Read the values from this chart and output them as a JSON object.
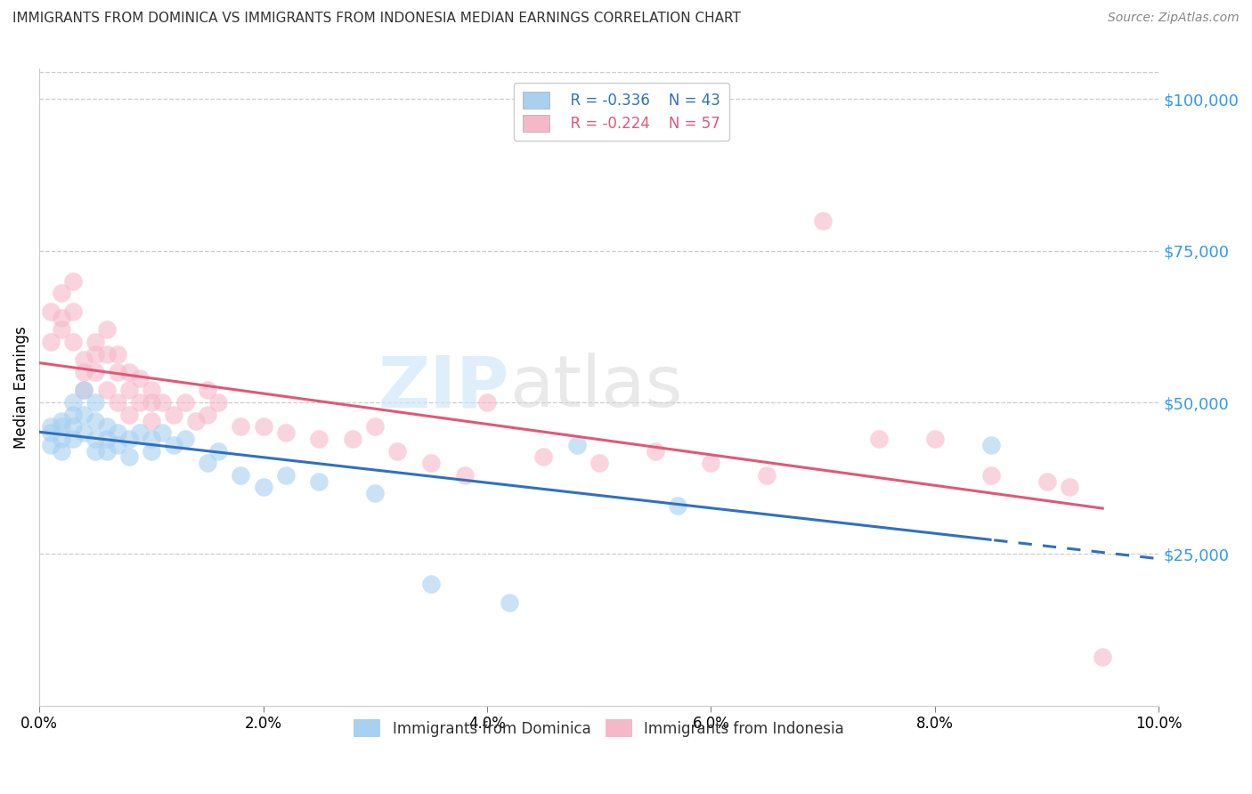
{
  "title": "IMMIGRANTS FROM DOMINICA VS IMMIGRANTS FROM INDONESIA MEDIAN EARNINGS CORRELATION CHART",
  "source": "Source: ZipAtlas.com",
  "ylabel": "Median Earnings",
  "right_yticks": [
    25000,
    50000,
    75000,
    100000
  ],
  "right_yticklabels": [
    "$25,000",
    "$50,000",
    "$75,000",
    "$100,000"
  ],
  "legend_blue_r": "R = -0.336",
  "legend_blue_n": "N = 43",
  "legend_pink_r": "R = -0.224",
  "legend_pink_n": "N = 57",
  "legend_blue_label": "Immigrants from Dominica",
  "legend_pink_label": "Immigrants from Indonesia",
  "blue_color": "#a8d0f0",
  "pink_color": "#f5b8c8",
  "blue_line_color": "#3070c0",
  "pink_line_color": "#e05878",
  "xmin": 0.0,
  "xmax": 0.1,
  "ymin": 0,
  "ymax": 105000,
  "blue_scatter_x": [
    0.001,
    0.001,
    0.001,
    0.002,
    0.002,
    0.002,
    0.002,
    0.003,
    0.003,
    0.003,
    0.003,
    0.004,
    0.004,
    0.004,
    0.005,
    0.005,
    0.005,
    0.005,
    0.006,
    0.006,
    0.006,
    0.007,
    0.007,
    0.008,
    0.008,
    0.009,
    0.01,
    0.01,
    0.011,
    0.012,
    0.013,
    0.015,
    0.016,
    0.018,
    0.02,
    0.022,
    0.025,
    0.03,
    0.035,
    0.042,
    0.048,
    0.057,
    0.085
  ],
  "blue_scatter_y": [
    46000,
    45000,
    43000,
    47000,
    46000,
    44000,
    42000,
    50000,
    48000,
    46000,
    44000,
    52000,
    48000,
    45000,
    50000,
    47000,
    44000,
    42000,
    46000,
    44000,
    42000,
    45000,
    43000,
    44000,
    41000,
    45000,
    44000,
    42000,
    45000,
    43000,
    44000,
    40000,
    42000,
    38000,
    36000,
    38000,
    37000,
    35000,
    20000,
    17000,
    43000,
    33000,
    43000
  ],
  "pink_scatter_x": [
    0.001,
    0.001,
    0.002,
    0.002,
    0.002,
    0.003,
    0.003,
    0.003,
    0.004,
    0.004,
    0.004,
    0.005,
    0.005,
    0.005,
    0.006,
    0.006,
    0.006,
    0.007,
    0.007,
    0.007,
    0.008,
    0.008,
    0.008,
    0.009,
    0.009,
    0.01,
    0.01,
    0.01,
    0.011,
    0.012,
    0.013,
    0.014,
    0.015,
    0.015,
    0.016,
    0.018,
    0.02,
    0.022,
    0.025,
    0.028,
    0.03,
    0.032,
    0.035,
    0.038,
    0.04,
    0.045,
    0.05,
    0.055,
    0.06,
    0.065,
    0.07,
    0.075,
    0.08,
    0.085,
    0.09,
    0.092,
    0.095
  ],
  "pink_scatter_y": [
    65000,
    60000,
    68000,
    64000,
    62000,
    70000,
    65000,
    60000,
    57000,
    55000,
    52000,
    60000,
    58000,
    55000,
    62000,
    58000,
    52000,
    58000,
    55000,
    50000,
    55000,
    52000,
    48000,
    54000,
    50000,
    52000,
    50000,
    47000,
    50000,
    48000,
    50000,
    47000,
    52000,
    48000,
    50000,
    46000,
    46000,
    45000,
    44000,
    44000,
    46000,
    42000,
    40000,
    38000,
    50000,
    41000,
    40000,
    42000,
    40000,
    38000,
    80000,
    44000,
    44000,
    38000,
    37000,
    36000,
    8000
  ],
  "xticks": [
    0.0,
    0.02,
    0.04,
    0.06,
    0.08,
    0.1
  ],
  "xticklabels": [
    "0.0%",
    "2.0%",
    "4.0%",
    "6.0%",
    "8.0%",
    "10.0%"
  ]
}
